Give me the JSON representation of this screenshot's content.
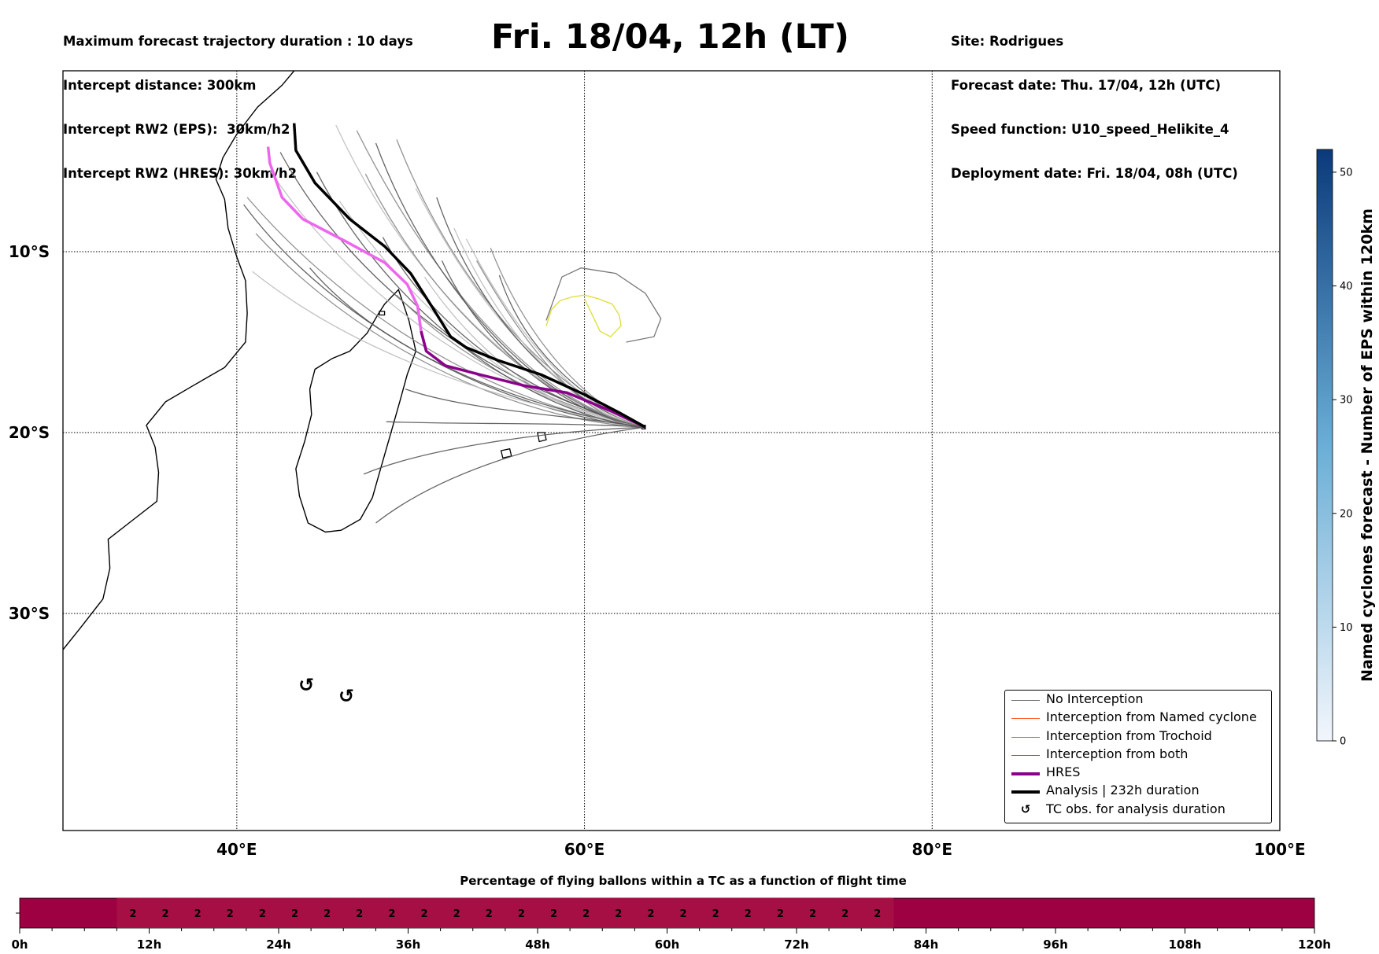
{
  "header": {
    "left_lines": [
      "Maximum forecast trajectory duration : 10 days",
      "Intercept distance: 300km",
      "Intercept RW2 (EPS):  30km/h2",
      "Intercept RW2 (HRES): 30km/h2"
    ],
    "title": "Fri. 18/04, 12h (LT)",
    "right_lines": [
      "Site: Rodrigues",
      "Forecast date: Thu. 17/04, 12h (UTC)",
      "Speed function: U10_speed_Helikite_4",
      "Deployment date: Fri. 18/04, 08h (UTC)"
    ]
  },
  "legend": {
    "items": [
      {
        "label": "No Interception",
        "color": "#666666",
        "style": "thin"
      },
      {
        "label": "Interception from Named cyclone",
        "color": "#ff5a1e",
        "style": "thin"
      },
      {
        "label": "Interception from Trochoid",
        "color": "#8c8c00",
        "style": "thin"
      },
      {
        "label": "Interception from both",
        "color": "#1e961e",
        "style": "thin"
      },
      {
        "label": "HRES",
        "color": "#8b008b",
        "style": "thick"
      },
      {
        "label": "Analysis | 232h duration",
        "color": "#000000",
        "style": "thick"
      },
      {
        "label": "TC obs. for analysis duration",
        "color": "#000000",
        "style": "marker"
      }
    ]
  },
  "colorbar": {
    "label": "Named cyclones forecast - Number of EPS within 120km",
    "ticks": [
      "0",
      "10",
      "20",
      "30",
      "40",
      "50"
    ],
    "range": [
      0,
      52
    ],
    "color_low": "#f2f6fc",
    "color_high": "#0b3a7a"
  },
  "bottom_bar": {
    "title": "Percentage of flying ballons within a TC as a function of flight time",
    "hour_ticks": [
      "0h",
      "12h",
      "24h",
      "36h",
      "48h",
      "60h",
      "72h",
      "84h",
      "96h",
      "108h",
      "120h"
    ],
    "values_start_hour": 9,
    "value_label": "2",
    "value_count": 24,
    "fill_color": "#9e0142",
    "value_cell_color": "#a50f44"
  },
  "chart_data": {
    "type": "map",
    "lon_range": [
      30,
      100
    ],
    "lat_range": [
      -42,
      0
    ],
    "lon_ticks": [
      "40°E",
      "60°E",
      "80°E",
      "100°E"
    ],
    "lat_ticks": [
      "10°S",
      "20°S",
      "30°S"
    ],
    "start_point": {
      "lon": 63.5,
      "lat": -19.7
    },
    "analysis_track": [
      [
        63.5,
        -19.7
      ],
      [
        62,
        -18.9
      ],
      [
        60,
        -17.9
      ],
      [
        57.5,
        -16.8
      ],
      [
        55,
        -16
      ],
      [
        53.2,
        -15.3
      ],
      [
        52.3,
        -14.7
      ],
      [
        51.2,
        -13
      ],
      [
        50,
        -11.2
      ],
      [
        48.5,
        -9.7
      ],
      [
        46.5,
        -8.2
      ],
      [
        44.5,
        -6.2
      ],
      [
        43.4,
        -4.4
      ],
      [
        43.3,
        -2.9
      ]
    ],
    "hres_track": [
      [
        63.5,
        -19.7
      ],
      [
        61.5,
        -18.8
      ],
      [
        59,
        -17.8
      ],
      [
        56.5,
        -17.4
      ],
      [
        54,
        -16.8
      ],
      [
        52,
        -16.3
      ],
      [
        50.9,
        -15.5
      ],
      [
        50.6,
        -14.4
      ],
      [
        50.4,
        -13
      ],
      [
        49.8,
        -11.8
      ],
      [
        48.5,
        -10.6
      ],
      [
        46.2,
        -9.4
      ],
      [
        43.8,
        -8.2
      ],
      [
        42.6,
        -7
      ],
      [
        41.9,
        -5.1
      ],
      [
        41.8,
        -4.2
      ]
    ],
    "trochoid_loop": [
      [
        57.8,
        -14.1
      ],
      [
        58.1,
        -13.2
      ],
      [
        58.6,
        -12.7
      ],
      [
        59.3,
        -12.5
      ],
      [
        60,
        -12.4
      ],
      [
        60.8,
        -12.6
      ],
      [
        61.6,
        -12.9
      ],
      [
        62,
        -13.5
      ],
      [
        62.1,
        -14.1
      ],
      [
        61.5,
        -14.7
      ],
      [
        60.9,
        -14.4
      ],
      [
        60.5,
        -13.6
      ],
      [
        60,
        -12.6
      ]
    ],
    "named_cyclone_loop": [
      [
        57.8,
        -13.8
      ],
      [
        58.7,
        -11.4
      ],
      [
        59.8,
        -10.9
      ],
      [
        61.8,
        -11.2
      ],
      [
        63.5,
        -12.3
      ],
      [
        64.4,
        -13.7
      ],
      [
        64,
        -14.7
      ],
      [
        62.4,
        -15
      ]
    ],
    "eps_endpoints": [
      [
        42.5,
        -4.5
      ],
      [
        41.9,
        -5.5
      ],
      [
        40.6,
        -7
      ],
      [
        40.4,
        -7.4
      ],
      [
        41.1,
        -9
      ],
      [
        40.9,
        -11.1
      ],
      [
        44.2,
        -10.9
      ],
      [
        45.7,
        -3
      ],
      [
        46.9,
        -3.3
      ],
      [
        48,
        -4
      ],
      [
        49.2,
        -3.8
      ],
      [
        50.3,
        -6.5
      ],
      [
        51.5,
        -7
      ],
      [
        52.5,
        -8.7
      ],
      [
        53.8,
        -10.5
      ],
      [
        55.1,
        -11.3
      ],
      [
        54.6,
        -9.8
      ],
      [
        53.2,
        -9.3
      ],
      [
        51.8,
        -10.5
      ],
      [
        50.8,
        -11.4
      ],
      [
        49.2,
        -12.4
      ],
      [
        48.4,
        -9.2
      ],
      [
        47.4,
        -5.7
      ],
      [
        45.9,
        -7.2
      ],
      [
        44.6,
        -5.6
      ],
      [
        49.7,
        -17.6
      ],
      [
        48.6,
        -19.4
      ],
      [
        47.3,
        -22.3
      ],
      [
        48,
        -25
      ]
    ],
    "tc_obs_markers": [
      [
        44,
        -34
      ],
      [
        46.3,
        -34.6
      ]
    ],
    "coastlines": {
      "africa": [
        [
          30,
          -32
        ],
        [
          31,
          -30.8
        ],
        [
          32.3,
          -29.2
        ],
        [
          32.7,
          -27.5
        ],
        [
          32.6,
          -25.9
        ],
        [
          33.8,
          -25
        ],
        [
          35.4,
          -23.8
        ],
        [
          35.5,
          -22.2
        ],
        [
          35.3,
          -20.8
        ],
        [
          34.8,
          -19.6
        ],
        [
          35.9,
          -18.3
        ],
        [
          37.5,
          -17.4
        ],
        [
          39.3,
          -16.4
        ],
        [
          40.5,
          -15
        ],
        [
          40.6,
          -13.4
        ],
        [
          40.5,
          -11.6
        ],
        [
          40,
          -10.3
        ],
        [
          39.5,
          -8.7
        ],
        [
          39.3,
          -7.1
        ],
        [
          38.8,
          -6
        ],
        [
          39.2,
          -4.8
        ],
        [
          40,
          -3.5
        ],
        [
          41.2,
          -2
        ],
        [
          42.6,
          -0.8
        ],
        [
          43.3,
          0
        ]
      ],
      "madagascar": [
        [
          49.3,
          -12.1
        ],
        [
          49.9,
          -13.8
        ],
        [
          50.3,
          -15.5
        ],
        [
          49.8,
          -16.8
        ],
        [
          49.4,
          -18.2
        ],
        [
          48.9,
          -19.9
        ],
        [
          48.3,
          -21.9
        ],
        [
          47.8,
          -23.6
        ],
        [
          47.1,
          -24.8
        ],
        [
          46,
          -25.4
        ],
        [
          45.1,
          -25.5
        ],
        [
          44.1,
          -25
        ],
        [
          43.6,
          -23.5
        ],
        [
          43.4,
          -22
        ],
        [
          43.9,
          -20.5
        ],
        [
          44.3,
          -19
        ],
        [
          44.2,
          -17.6
        ],
        [
          44.5,
          -16.5
        ],
        [
          45.5,
          -15.9
        ],
        [
          46.5,
          -15.5
        ],
        [
          47.5,
          -14.5
        ],
        [
          48.1,
          -13.5
        ],
        [
          48.5,
          -12.9
        ],
        [
          49.3,
          -12.1
        ]
      ],
      "islands": [
        [
          [
            55.2,
            -21.0
          ],
          [
            55.7,
            -20.9
          ],
          [
            55.8,
            -21.3
          ],
          [
            55.3,
            -21.4
          ]
        ],
        [
          [
            57.3,
            -20.0
          ],
          [
            57.7,
            -20.0
          ],
          [
            57.8,
            -20.4
          ],
          [
            57.4,
            -20.5
          ]
        ],
        [
          [
            63.3,
            -19.6
          ],
          [
            63.5,
            -19.6
          ],
          [
            63.5,
            -19.8
          ],
          [
            63.3,
            -19.8
          ]
        ],
        [
          [
            48.2,
            -13.3
          ],
          [
            48.5,
            -13.3
          ],
          [
            48.5,
            -13.5
          ],
          [
            48.2,
            -13.5
          ]
        ]
      ]
    }
  }
}
